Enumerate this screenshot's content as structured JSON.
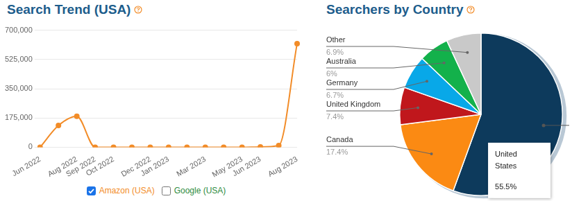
{
  "chart_data": [
    {
      "type": "line",
      "title": "Search Trend (USA)",
      "categories": [
        "Jun 2022",
        null,
        "Aug 2022",
        "Sep 2022",
        "Oct 2022",
        null,
        "Dec 2022",
        "Jan 2023",
        null,
        "Mar 2023",
        null,
        "May 2023",
        "Jun 2023",
        null,
        "Aug 2023"
      ],
      "series": [
        {
          "name": "Amazon (USA)",
          "color": "#f28c28",
          "values": [
            0,
            130000,
            185000,
            0,
            0,
            0,
            0,
            0,
            0,
            0,
            0,
            0,
            2000,
            10000,
            620000
          ]
        },
        {
          "name": "Google (USA)",
          "color": "#2e8b3e",
          "values": [
            null,
            null,
            null,
            null,
            null,
            null,
            null,
            null,
            null,
            null,
            null,
            null,
            null,
            null,
            null
          ]
        }
      ],
      "ylim": [
        0,
        700000
      ],
      "yticks": [
        0,
        {
          "value": 175000,
          "label": "175,000"
        },
        {
          "value": 350000,
          "label": "350,000"
        },
        {
          "value": 525000,
          "label": "525,000"
        },
        {
          "value": 700000,
          "label": "700,000"
        }
      ],
      "grid": true,
      "legend": "bottom",
      "marker": "circle"
    },
    {
      "type": "pie",
      "title": "Searchers by Country",
      "categories": [
        "United States",
        "Canada",
        "United Kingdom",
        "Germany",
        "Australia",
        "Other"
      ],
      "values": [
        55.5,
        17.4,
        7.4,
        6.7,
        6,
        6.9
      ],
      "value_labels": [
        "55.5%",
        "17.4%",
        "7.4%",
        "6.7%",
        "6%",
        "6.9%"
      ],
      "colors": [
        "#0d3a5c",
        "#fb8a13",
        "#c0171c",
        "#08a8e8",
        "#13b14b",
        "#c9c9c9"
      ],
      "data_labels": true
    }
  ]
}
